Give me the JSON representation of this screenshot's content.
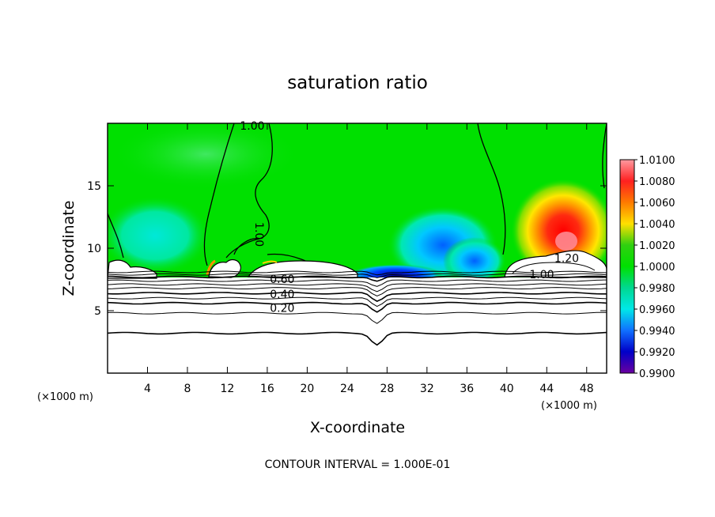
{
  "chart_data": {
    "type": "heatmap",
    "title": "saturation ratio",
    "xlabel": "X-coordinate",
    "ylabel": "Z-coordinate",
    "x_unit": "(×1000 m)",
    "x_unit_right": "(×1000 m)",
    "xlim": [
      0,
      50
    ],
    "ylim": [
      0,
      20
    ],
    "x_ticks": [
      "4",
      "8",
      "12",
      "16",
      "20",
      "24",
      "28",
      "32",
      "36",
      "40",
      "44",
      "48"
    ],
    "y_ticks": [
      "5",
      "10",
      "15"
    ],
    "note": "CONTOUR INTERVAL = 1.000E-01",
    "colorbar": {
      "min": 0.99,
      "max": 1.01,
      "labels": [
        "1.0100",
        "1.0080",
        "1.0060",
        "1.0040",
        "1.0020",
        "1.0000",
        "0.9980",
        "0.9960",
        "0.9940",
        "0.9920",
        "0.9900"
      ],
      "colors": [
        "#ff9aa0",
        "#ff2020",
        "#ff7a00",
        "#ffe000",
        "#30d010",
        "#00e000",
        "#00d890",
        "#00e8e8",
        "#1070ff",
        "#0000c8",
        "#6a00a0"
      ]
    },
    "contour_labels": [
      {
        "text": "1.00",
        "x": 14.5,
        "y": 19.5
      },
      {
        "text": "1.00",
        "x": 14.8,
        "y": 11.1
      },
      {
        "text": "1.20",
        "x": 46.0,
        "y": 8.9
      },
      {
        "text": "1.00",
        "x": 43.5,
        "y": 7.6
      },
      {
        "text": "0.60",
        "x": 17.5,
        "y": 7.2
      },
      {
        "text": "0.40",
        "x": 17.5,
        "y": 6.0
      },
      {
        "text": "0.20",
        "x": 17.5,
        "y": 4.9
      }
    ],
    "contour_levels": [
      0.2,
      0.3,
      0.4,
      0.5,
      0.6,
      0.7,
      0.8,
      0.9,
      1.0,
      1.1,
      1.2
    ],
    "grid": false
  },
  "colors": {
    "background": "#ffffff",
    "field_base": "#00e000",
    "contour": "#000000"
  }
}
